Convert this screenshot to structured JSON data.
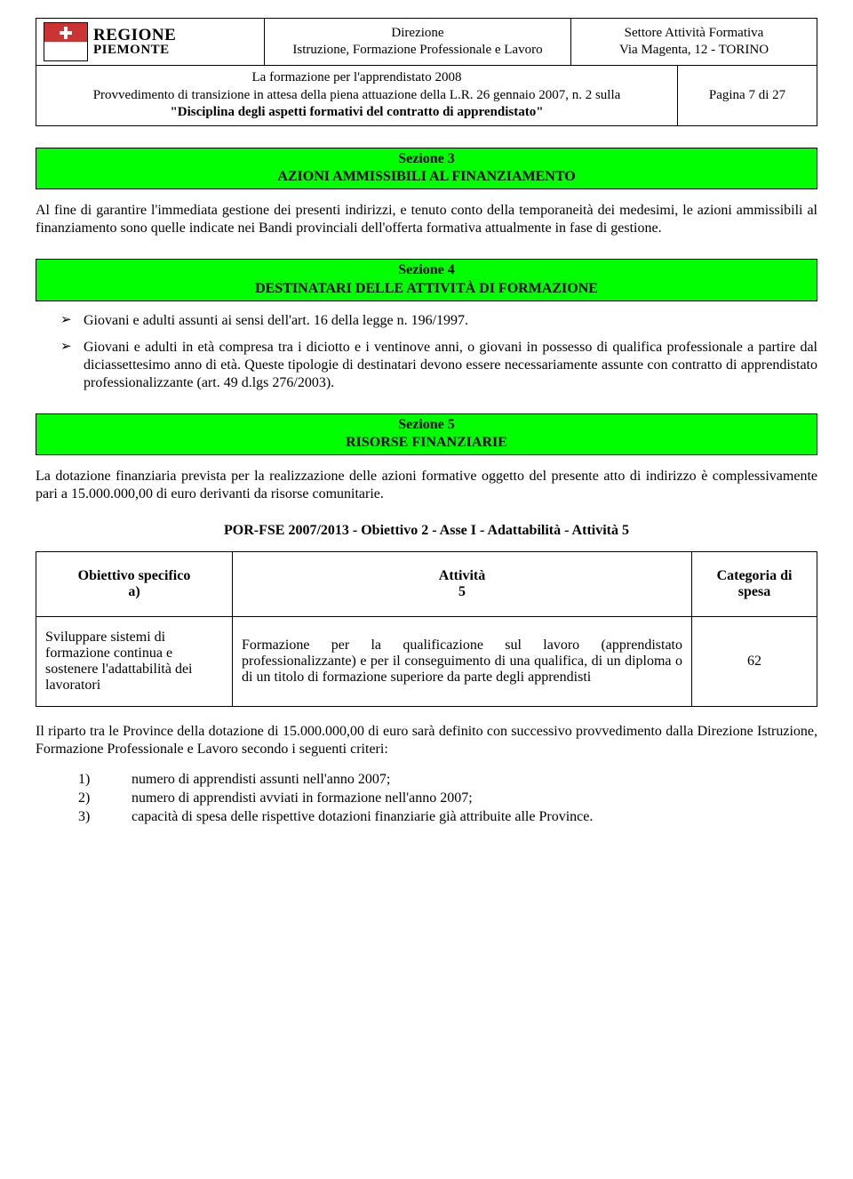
{
  "header": {
    "logo": {
      "line1": "REGIONE",
      "line2": "PIEMONTE"
    },
    "center": {
      "line1": "Direzione",
      "line2": "Istruzione, Formazione Professionale e Lavoro"
    },
    "right": {
      "line1": "Settore Attività Formativa",
      "line2": "Via Magenta, 12 - TORINO"
    },
    "sub_left": {
      "line1": "La formazione per l'apprendistato 2008",
      "line2": "Provvedimento di transizione in attesa della piena attuazione della L.R. 26 gennaio 2007, n. 2 sulla",
      "line3": "\"Disciplina degli aspetti formativi del contratto di apprendistato\""
    },
    "sub_right": "Pagina 7 di 27"
  },
  "sections": {
    "s3": {
      "title_l1": "Sezione 3",
      "title_l2": "AZIONI AMMISSIBILI AL FINANZIAMENTO",
      "body": "Al fine di garantire l'immediata gestione dei presenti indirizzi, e tenuto conto della temporaneità dei medesimi, le azioni ammissibili al finanziamento sono quelle indicate nei Bandi provinciali dell'offerta formativa attualmente in fase di gestione."
    },
    "s4": {
      "title_l1": "Sezione 4",
      "title_l2": "DESTINATARI DELLE ATTIVITÀ DI FORMAZIONE",
      "bullets": [
        "Giovani e adulti assunti ai sensi dell'art. 16 della legge n. 196/1997.",
        "Giovani e adulti in età compresa tra i diciotto e i ventinove anni, o giovani in possesso di qualifica professionale a partire dal diciassettesimo anno di età. Queste tipologie di destinatari devono essere necessariamente assunte con contratto di apprendistato professionalizzante (art. 49 d.lgs 276/2003)."
      ]
    },
    "s5": {
      "title_l1": "Sezione 5",
      "title_l2": "RISORSE FINANZIARIE",
      "body": "La dotazione finanziaria prevista per la realizzazione delle azioni formative oggetto del presente atto di indirizzo è complessivamente pari a 15.000.000,00 di euro derivanti da risorse comunitarie.",
      "subtitle": "POR-FSE 2007/2013 - Obiettivo 2 - Asse I - Adattabilità - Attività 5",
      "table": {
        "headers": {
          "c1_l1": "Obiettivo specifico",
          "c1_l2": "a)",
          "c2_l1": "Attività",
          "c2_l2": "5",
          "c3_l1": "Categoria di",
          "c3_l2": "spesa"
        },
        "row": {
          "c1": "Sviluppare sistemi di formazione continua e sostenere l'adattabilità dei lavoratori",
          "c2": "Formazione per la qualificazione sul lavoro (apprendistato professionalizzante) e per il conseguimento di una qualifica, di un diploma o di un titolo di formazione superiore da parte degli apprendisti",
          "c3": "62"
        }
      },
      "tail": "Il riparto tra le Province della dotazione di 15.000.000,00 di euro sarà definito con successivo provvedimento dalla Direzione Istruzione, Formazione Professionale e Lavoro secondo i seguenti criteri:",
      "criteria": [
        {
          "n": "1)",
          "t": "numero di apprendisti assunti nell'anno 2007;"
        },
        {
          "n": "2)",
          "t": "numero di apprendisti avviati in formazione nell'anno 2007;"
        },
        {
          "n": "3)",
          "t": "capacità di spesa delle rispettive dotazioni finanziarie già attribuite alle Province."
        }
      ]
    }
  },
  "colors": {
    "banner_bg": "#00ff00",
    "border": "#000000",
    "text": "#000000",
    "flag_red": "#cc3333"
  }
}
